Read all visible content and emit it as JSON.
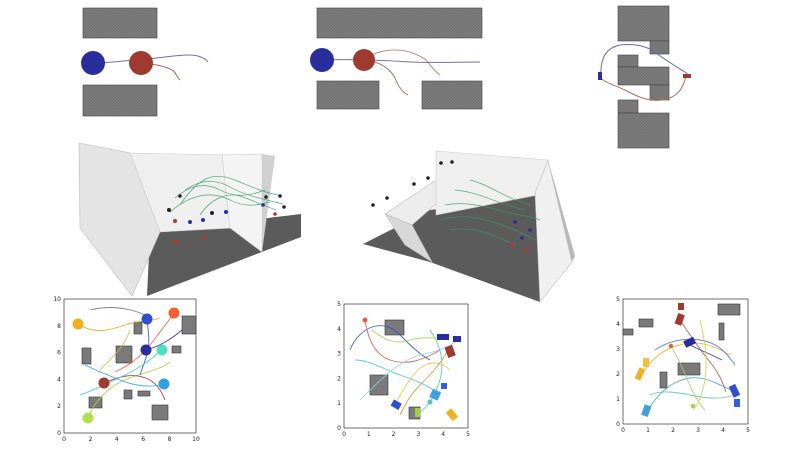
{
  "plots": [
    {
      "id": "plot-1",
      "x_ticks": [
        "0",
        "2",
        "4",
        "6",
        "8",
        "10"
      ],
      "y_ticks": [
        "0",
        "2",
        "4",
        "6",
        "8",
        "10"
      ]
    },
    {
      "id": "plot-2",
      "x_ticks": [
        "0",
        "1",
        "2",
        "3",
        "4",
        "5"
      ],
      "y_ticks": [
        "0",
        "1",
        "2",
        "3",
        "4",
        "5"
      ]
    },
    {
      "id": "plot-3",
      "x_ticks": [
        "0",
        "1",
        "2",
        "3",
        "4",
        "5"
      ],
      "y_ticks": [
        "0",
        "1",
        "2",
        "3",
        "4",
        "5"
      ]
    }
  ],
  "colors": {
    "agent_blue": "#2a2d9c",
    "agent_red": "#9e3a2e",
    "obstacle": "#7a7a7a",
    "path_blue": "#6a6ab0",
    "path_red": "#b07060",
    "wall": "#e6e6e6",
    "floor": "#5a5a5a"
  }
}
